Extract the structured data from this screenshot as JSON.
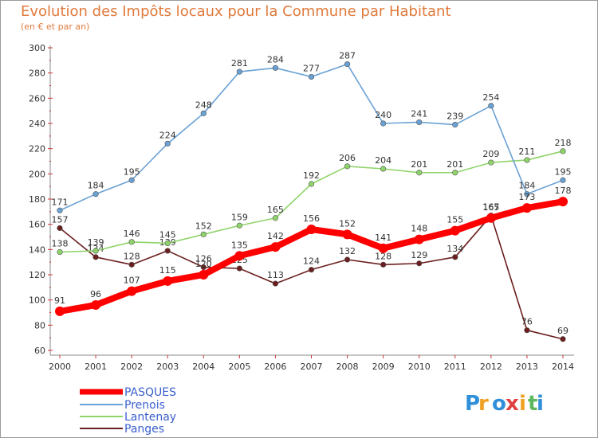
{
  "chart_data": {
    "type": "line",
    "title": "Evolution des Impôts locaux pour la Commune par Habitant",
    "subtitle": "(en € et par an)",
    "x": [
      "2000",
      "2001",
      "2002",
      "2003",
      "2004",
      "2005",
      "2006",
      "2007",
      "2008",
      "2009",
      "2010",
      "2011",
      "2012",
      "2013",
      "2014"
    ],
    "ylim": [
      60,
      300
    ],
    "yticks": [
      60,
      80,
      100,
      120,
      140,
      160,
      180,
      200,
      220,
      240,
      260,
      280,
      300
    ],
    "grid": false,
    "legend_position": "bottom-left",
    "series": [
      {
        "name": "Panges",
        "color": "#6b1e1e",
        "values": [
          157,
          134,
          128,
          139,
          126,
          125,
          113,
          124,
          132,
          128,
          129,
          134,
          167,
          76,
          69
        ]
      },
      {
        "name": "Lantenay",
        "color": "#8fd46a",
        "values": [
          138,
          139,
          146,
          145,
          152,
          159,
          165,
          192,
          206,
          204,
          201,
          201,
          209,
          211,
          218
        ]
      },
      {
        "name": "Prenois",
        "color": "#6aa1d4",
        "values": [
          171,
          184,
          195,
          224,
          248,
          281,
          284,
          277,
          287,
          240,
          241,
          239,
          254,
          184,
          195
        ]
      },
      {
        "name": "PASQUES",
        "color": "#ff0000",
        "values": [
          91,
          96,
          107,
          115,
          120,
          135,
          142,
          156,
          152,
          141,
          148,
          155,
          165,
          173,
          178
        ]
      }
    ],
    "legend": [
      "PASQUES",
      "Prenois",
      "Lantenay",
      "Panges"
    ]
  },
  "logo": {
    "text": "Proxiti"
  }
}
